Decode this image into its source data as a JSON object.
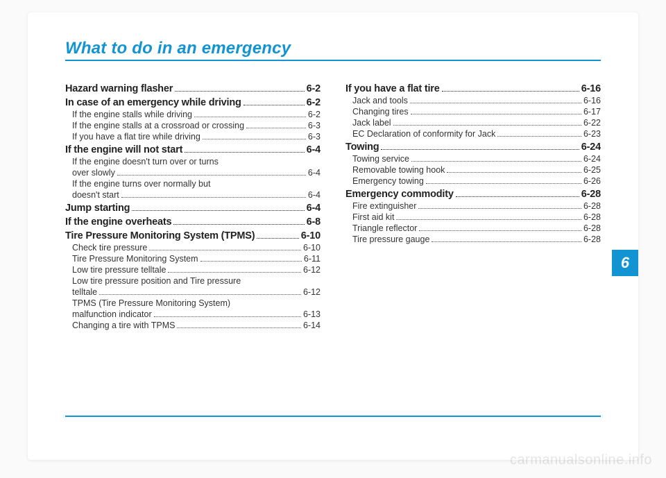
{
  "colors": {
    "accent": "#1294d3",
    "page_bg": "#ffffff",
    "body_bg": "#fafafa",
    "text": "#222222",
    "subtext": "#333333",
    "watermark": "rgba(0,0,0,0.10)"
  },
  "title": "What to do in an emergency",
  "chapter_number": "6",
  "watermark": "carmanualsonline.info",
  "left_column": [
    {
      "level": 1,
      "label": "Hazard warning flasher",
      "page": "6-2"
    },
    {
      "level": 1,
      "label": "In case of an emergency while driving",
      "page": "6-2"
    },
    {
      "level": 2,
      "label": "If the engine stalls while driving",
      "page": "6-2"
    },
    {
      "level": 2,
      "label": "If the engine stalls at a crossroad or crossing",
      "page": "6-3"
    },
    {
      "level": 2,
      "label": "If you have a flat tire while driving",
      "page": "6-3"
    },
    {
      "level": 1,
      "label": "If the engine will not start",
      "page": "6-4"
    },
    {
      "level": 2,
      "label": "If the engine doesn't turn over or turns",
      "cont": true
    },
    {
      "level": 2,
      "label": "over slowly",
      "page": "6-4"
    },
    {
      "level": 2,
      "label": "If the engine turns over normally but",
      "cont": true
    },
    {
      "level": 2,
      "label": "doesn't start",
      "page": "6-4"
    },
    {
      "level": 1,
      "label": "Jump starting",
      "page": "6-4"
    },
    {
      "level": 1,
      "label": "If the engine overheats",
      "page": "6-8"
    },
    {
      "level": 1,
      "label": "Tire Pressure Monitoring System (TPMS)",
      "page": "6-10"
    },
    {
      "level": 2,
      "label": "Check tire pressure",
      "page": "6-10"
    },
    {
      "level": 2,
      "label": "Tire Pressure Monitoring System",
      "page": "6-11"
    },
    {
      "level": 2,
      "label": "Low tire pressure telltale",
      "page": "6-12"
    },
    {
      "level": 2,
      "label": "Low tire pressure position and Tire pressure",
      "cont": true
    },
    {
      "level": 2,
      "label": "telltale",
      "page": "6-12"
    },
    {
      "level": 2,
      "label": "TPMS (Tire Pressure Monitoring System)",
      "cont": true
    },
    {
      "level": 2,
      "label": "malfunction indicator",
      "page": "6-13"
    },
    {
      "level": 2,
      "label": "Changing a tire with TPMS",
      "page": "6-14"
    }
  ],
  "right_column": [
    {
      "level": 1,
      "label": "If you have a flat tire",
      "page": "6-16"
    },
    {
      "level": 2,
      "label": "Jack and tools",
      "page": "6-16"
    },
    {
      "level": 2,
      "label": "Changing tires",
      "page": "6-17"
    },
    {
      "level": 2,
      "label": "Jack label",
      "page": "6-22"
    },
    {
      "level": 2,
      "label": "EC Declaration of conformity for Jack",
      "page": "6-23"
    },
    {
      "level": 1,
      "label": "Towing",
      "page": "6-24"
    },
    {
      "level": 2,
      "label": "Towing service",
      "page": "6-24"
    },
    {
      "level": 2,
      "label": "Removable towing hook",
      "page": "6-25"
    },
    {
      "level": 2,
      "label": "Emergency towing",
      "page": "6-26"
    },
    {
      "level": 1,
      "label": "Emergency commodity",
      "page": "6-28"
    },
    {
      "level": 2,
      "label": "Fire extinguisher",
      "page": "6-28"
    },
    {
      "level": 2,
      "label": "First aid kit",
      "page": "6-28"
    },
    {
      "level": 2,
      "label": "Triangle reflector",
      "page": "6-28"
    },
    {
      "level": 2,
      "label": "Tire pressure gauge",
      "page": "6-28"
    }
  ]
}
